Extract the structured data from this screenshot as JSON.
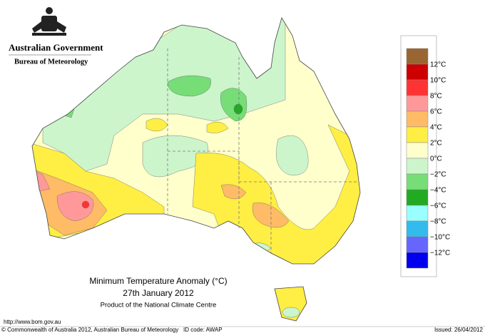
{
  "header": {
    "government": "Australian Government",
    "agency": "Bureau of Meteorology"
  },
  "map": {
    "title": "Minimum Temperature Anomaly (°C)",
    "date": "27th January 2012",
    "credit": "Product of the National Climate Centre"
  },
  "legend": {
    "colors": [
      "#996633",
      "#cc0000",
      "#ff3333",
      "#ff9999",
      "#ffbb66",
      "#ffee44",
      "#ffffcc",
      "#ccf5cc",
      "#77dd77",
      "#22aa22",
      "#99ffff",
      "#33bbee",
      "#6666ff",
      "#0000ee"
    ],
    "labels": [
      "12°C",
      "10°C",
      "8°C",
      "6°C",
      "4°C",
      "2°C",
      "0°C",
      "−2°C",
      "−4°C",
      "−6°C",
      "−8°C",
      "−10°C",
      "−12°C"
    ]
  },
  "footer": {
    "url": "http://www.bom.gov.au",
    "copyright": "© Commonwealth of Australia 2012, Australian Bureau of Meteorology",
    "id_code": "ID code: AWAP",
    "issued": "Issued: 26/04/2012"
  }
}
